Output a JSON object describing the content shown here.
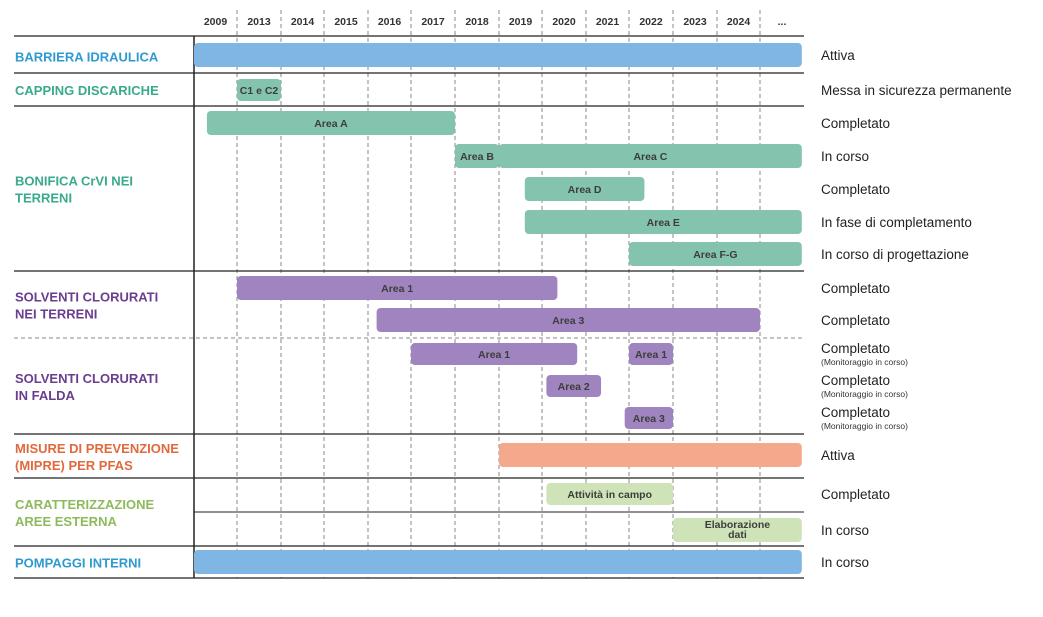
{
  "chart_data": {
    "type": "gantt",
    "years": [
      "2009",
      "2013",
      "2014",
      "2015",
      "2016",
      "2017",
      "2018",
      "2019",
      "2020",
      "2021",
      "2022",
      "2023",
      "2024",
      "..."
    ],
    "colors": {
      "blue": "#7fb6e4",
      "teal": "#84c3ae",
      "purple": "#9f84bf",
      "orange": "#f4a88c",
      "lightgreen": "#cfe3b8",
      "cat_blue": "#2e9ad0",
      "cat_teal": "#3aaa8c",
      "cat_purple": "#6a3d8f",
      "cat_orange": "#e2693c",
      "cat_green": "#8dbb5c"
    },
    "categories": [
      {
        "name": "BARRIERA IDRAULICA",
        "color": "cat_blue",
        "tasks": [
          {
            "label": "",
            "start": 0,
            "end": 13.95,
            "color": "blue",
            "status": "Attiva",
            "note": ""
          }
        ]
      },
      {
        "name": "CAPPING DISCARICHE",
        "color": "cat_teal",
        "tasks": [
          {
            "label": "C1 e C2",
            "start": 1.0,
            "end": 2.0,
            "color": "teal",
            "status": "Messa in sicurezza permanente",
            "note": ""
          }
        ]
      },
      {
        "name": "BONIFICA CrVI NEI TERRENI",
        "color": "cat_teal",
        "tasks": [
          {
            "label": "Area A",
            "start": 0.3,
            "end": 6.0,
            "color": "teal",
            "status": "Completato",
            "note": ""
          },
          {
            "label": "Area B",
            "start": 6.0,
            "end": 7.0,
            "color": "teal",
            "status": "",
            "note": ""
          },
          {
            "label": "Area C",
            "start": 7.0,
            "end": 13.95,
            "color": "teal",
            "status": "In corso",
            "note": ""
          },
          {
            "label": "Area D",
            "start": 7.6,
            "end": 10.35,
            "color": "teal",
            "status": "Completato",
            "note": ""
          },
          {
            "label": "Area E",
            "start": 7.6,
            "end": 13.95,
            "color": "teal",
            "status": "In fase di completamento",
            "note": ""
          },
          {
            "label": "Area F-G",
            "start": 10.0,
            "end": 13.95,
            "color": "teal",
            "status": "In corso di progettazione",
            "note": ""
          }
        ]
      },
      {
        "name": "SOLVENTI CLORURATI NEI TERRENI",
        "color": "cat_purple",
        "tasks": [
          {
            "label": "Area 1",
            "start": 1.0,
            "end": 8.35,
            "color": "purple",
            "status": "Completato",
            "note": ""
          },
          {
            "label": "Area 3",
            "start": 4.2,
            "end": 13.0,
            "color": "purple",
            "status": "Completato",
            "note": ""
          }
        ]
      },
      {
        "name": "SOLVENTI CLORURATI IN FALDA",
        "color": "cat_purple",
        "tasks": [
          {
            "label": "Area 1",
            "start": 5.0,
            "end": 8.8,
            "color": "purple",
            "status": "Completato",
            "note": "(Monitoraggio in corso)"
          },
          {
            "label": "Area 1",
            "start": 10.0,
            "end": 11.0,
            "color": "purple",
            "status": "",
            "note": ""
          },
          {
            "label": "Area 2",
            "start": 8.1,
            "end": 9.35,
            "color": "purple",
            "status": "Completato",
            "note": "(Monitoraggio in corso)"
          },
          {
            "label": "Area 3",
            "start": 9.9,
            "end": 11.0,
            "color": "purple",
            "status": "Completato",
            "note": "(Monitoraggio in corso)"
          }
        ]
      },
      {
        "name": "MISURE DI PREVENZIONE (MIPRE) PER PFAS",
        "color": "cat_orange",
        "tasks": [
          {
            "label": "",
            "start": 7.0,
            "end": 13.95,
            "color": "orange",
            "status": "Attiva",
            "note": ""
          }
        ]
      },
      {
        "name": "CARATTERIZZAZIONE AREE ESTERNA",
        "color": "cat_green",
        "tasks": [
          {
            "label": "Attività in campo",
            "start": 8.1,
            "end": 11.0,
            "color": "lightgreen",
            "status": "Completato",
            "note": ""
          },
          {
            "label": "Elaborazione dati",
            "start": 11.0,
            "end": 13.95,
            "color": "lightgreen",
            "status": "In corso",
            "note": ""
          }
        ]
      },
      {
        "name": "POMPAGGI INTERNI",
        "color": "cat_blue",
        "tasks": [
          {
            "label": "",
            "start": 0,
            "end": 13.95,
            "color": "blue",
            "status": "In corso",
            "note": ""
          }
        ]
      }
    ]
  }
}
